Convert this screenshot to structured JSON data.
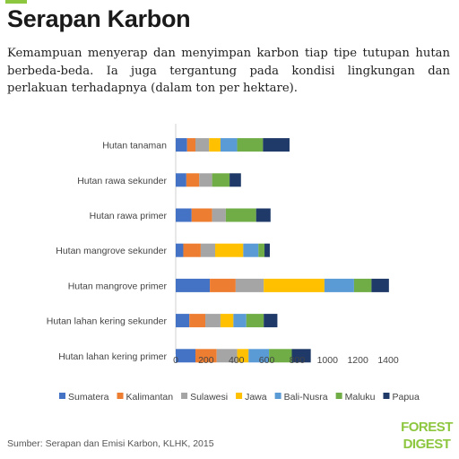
{
  "page": {
    "title": "Serapan Karbon",
    "subtitle": "Kemampuan menyerap dan menyimpan karbon tiap tipe tutupan hutan berbeda-beda. Ia juga tergantung pada kondisi lingkungan dan perlakuan terhadapnya (dalam ton per hektare).",
    "source": "Sumber: Serapan dan Emisi Karbon, KLHK, 2015",
    "logo_text": "FOREST DIGEST"
  },
  "chart_data": {
    "type": "bar",
    "orientation": "horizontal",
    "stacked": true,
    "categories": [
      "Hutan tanaman",
      "Hutan rawa sekunder",
      "Hutan rawa primer",
      "Hutan mangrove sekunder",
      "Hutan mangrove primer",
      "Hutan lahan kering sekunder",
      "Hutan lahan kering primer"
    ],
    "series": [
      {
        "name": "Sumatera",
        "color": "#4472c4",
        "values": [
          75,
          70,
          105,
          50,
          225,
          90,
          130
        ]
      },
      {
        "name": "Kalimantan",
        "color": "#ed7d31",
        "values": [
          55,
          85,
          135,
          115,
          170,
          105,
          140
        ]
      },
      {
        "name": "Sulawesi",
        "color": "#a5a5a5",
        "values": [
          90,
          85,
          90,
          95,
          185,
          100,
          135
        ]
      },
      {
        "name": "Jawa",
        "color": "#ffc000",
        "values": [
          75,
          0,
          0,
          185,
          400,
          85,
          75
        ]
      },
      {
        "name": "Bali-Nusra",
        "color": "#5b9bd5",
        "values": [
          110,
          0,
          0,
          100,
          195,
          85,
          135
        ]
      },
      {
        "name": "Maluku",
        "color": "#70ad47",
        "values": [
          170,
          115,
          200,
          40,
          115,
          115,
          150
        ]
      },
      {
        "name": "Papua",
        "color": "#1f3a68",
        "values": [
          175,
          75,
          95,
          35,
          115,
          90,
          125
        ]
      }
    ],
    "x_ticks": [
      0,
      200,
      400,
      600,
      800,
      1000,
      1200,
      1400
    ],
    "xlim": [
      0,
      1400
    ],
    "xlabel": "",
    "ylabel": "",
    "grid": false,
    "legend_position": "bottom"
  }
}
